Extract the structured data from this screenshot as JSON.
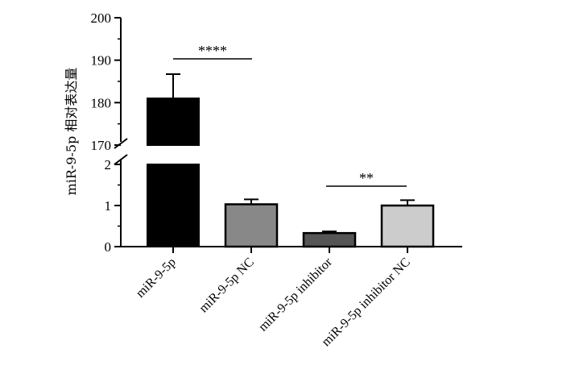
{
  "chart_data": {
    "type": "bar",
    "title": "",
    "xlabel": "",
    "ylabel": "miR-9-5p 相对表达量",
    "axis_break": {
      "lower_range": [
        0,
        2
      ],
      "upper_range": [
        170,
        200
      ]
    },
    "y_ticks_lower": [
      "0",
      "1",
      "2"
    ],
    "y_ticks_upper": [
      "170",
      "180",
      "190",
      "200"
    ],
    "categories": [
      "miR-9-5p",
      "miR-9-5p NC",
      "miR-9-5p inhibitor",
      "miR-9-5p inhibitor NC"
    ],
    "values": [
      181,
      1.03,
      0.33,
      1.0
    ],
    "error": [
      5.7,
      0.12,
      0.04,
      0.13
    ],
    "colors": [
      "#000000",
      "#888888",
      "#555555",
      "#cccccc"
    ],
    "annotations": [
      {
        "text": "****",
        "between": [
          0,
          1
        ]
      },
      {
        "text": "**",
        "between": [
          2,
          3
        ]
      }
    ],
    "grid": false,
    "legend": "none"
  }
}
